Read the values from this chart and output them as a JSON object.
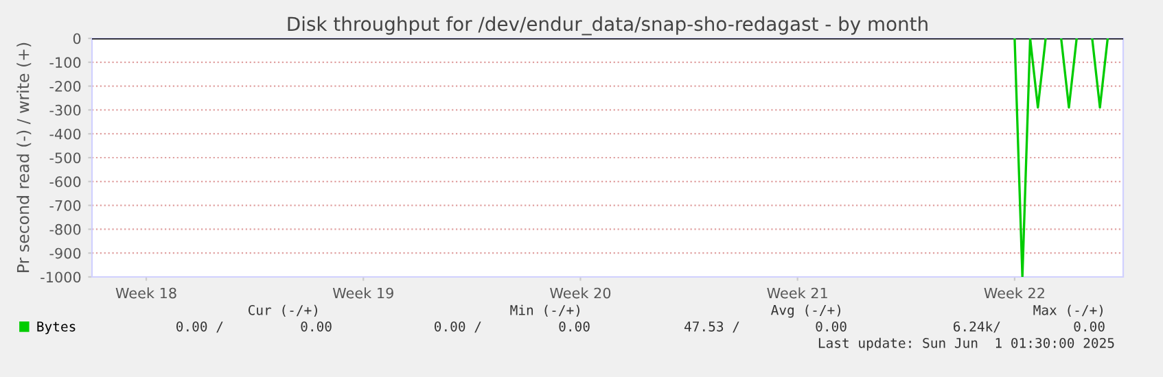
{
  "chart_data": {
    "type": "line",
    "title": "Disk throughput for /dev/endur_data/snap-sho-redagast - by month",
    "ylabel": "Pr second read (-) / write (+)",
    "categories": [
      null,
      null,
      null,
      null,
      null,
      null,
      null,
      "Week 18",
      null,
      null,
      null,
      null,
      null,
      null,
      null,
      null,
      null,
      null,
      null,
      null,
      null,
      null,
      null,
      null,
      null,
      null,
      null,
      null,
      null,
      null,
      null,
      null,
      null,
      null,
      null,
      "Week 19",
      null,
      null,
      null,
      null,
      null,
      null,
      null,
      null,
      null,
      null,
      null,
      null,
      null,
      null,
      null,
      null,
      null,
      null,
      null,
      null,
      null,
      null,
      null,
      null,
      null,
      null,
      null,
      "Week 20",
      null,
      null,
      null,
      null,
      null,
      null,
      null,
      null,
      null,
      null,
      null,
      null,
      null,
      null,
      null,
      null,
      null,
      null,
      null,
      null,
      null,
      null,
      null,
      null,
      null,
      null,
      null,
      "Week 21",
      null,
      null,
      null,
      null,
      null,
      null,
      null,
      null,
      null,
      null,
      null,
      null,
      null,
      null,
      null,
      null,
      null,
      null,
      null,
      null,
      null,
      null,
      null,
      null,
      null,
      null,
      null,
      "Week 22",
      null,
      null,
      null,
      null,
      null,
      null,
      null,
      null,
      null,
      null,
      null,
      null,
      null,
      null
    ],
    "series": [
      {
        "name": "Bytes",
        "color": "#00cc00",
        "values": [
          null,
          null,
          null,
          null,
          null,
          null,
          null,
          null,
          null,
          null,
          null,
          null,
          null,
          null,
          null,
          null,
          null,
          null,
          null,
          null,
          null,
          null,
          null,
          null,
          null,
          null,
          null,
          null,
          null,
          null,
          null,
          null,
          null,
          null,
          null,
          null,
          null,
          null,
          null,
          null,
          null,
          null,
          null,
          null,
          null,
          null,
          null,
          null,
          null,
          null,
          null,
          null,
          null,
          null,
          null,
          null,
          null,
          null,
          null,
          null,
          null,
          null,
          null,
          null,
          null,
          null,
          null,
          null,
          null,
          null,
          null,
          null,
          null,
          null,
          null,
          null,
          null,
          null,
          null,
          null,
          null,
          null,
          null,
          null,
          null,
          null,
          null,
          null,
          null,
          null,
          null,
          null,
          null,
          null,
          null,
          null,
          null,
          null,
          null,
          null,
          null,
          null,
          null,
          null,
          null,
          null,
          null,
          null,
          null,
          null,
          null,
          null,
          null,
          null,
          null,
          null,
          null,
          null,
          null,
          0,
          -1000,
          0,
          -290,
          0,
          null,
          0,
          -290,
          0,
          null,
          0,
          -290,
          0,
          null,
          null
        ]
      }
    ],
    "ylim": [
      -1000,
      0
    ],
    "yticks": [
      -1000,
      -900,
      -800,
      -700,
      -600,
      -500,
      -400,
      -300,
      -200,
      -100,
      0
    ],
    "ref_lines": [
      {
        "axis": "y",
        "value": 0,
        "color": "#000000"
      }
    ],
    "grid": "y",
    "legend": "bottom",
    "marker": "none",
    "line_style": "solid",
    "annotations": [
      "Cur (-/+)",
      "Min (-/+)",
      "Avg (-/+)",
      "Max (-/+)",
      "0.00 /",
      "0.00",
      "0.00 /",
      "0.00",
      "47.53 /",
      "0.00",
      "6.24k/",
      "0.00",
      "Last update: Sun Jun  1 01:30:00 2025"
    ]
  }
}
